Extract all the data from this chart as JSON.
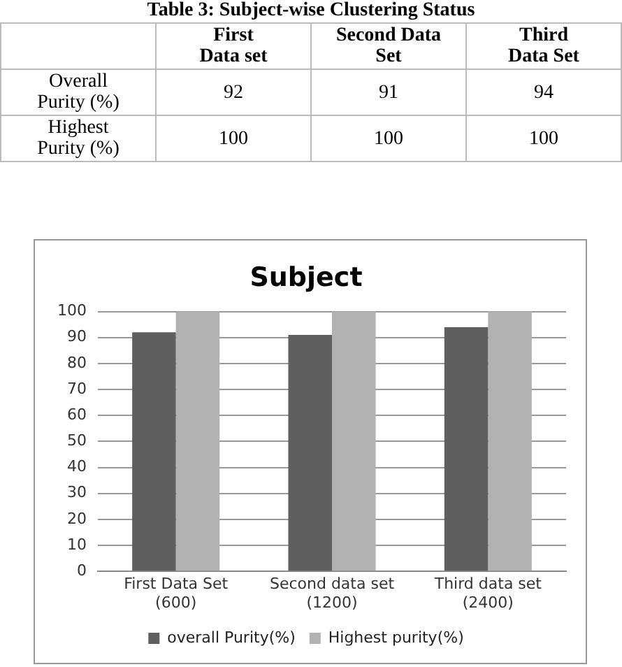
{
  "chart_data": {
    "type": "bar",
    "title": "Subject",
    "categories": [
      "First Data Set\n(600)",
      "Second data set\n(1200)",
      "Third data set\n(2400)"
    ],
    "series": [
      {
        "name": "overall Purity(%)",
        "color": "#5f5f5f",
        "values": [
          92,
          91,
          94
        ]
      },
      {
        "name": "Highest purity(%)",
        "color": "#b2b2b2",
        "values": [
          100,
          100,
          100
        ]
      }
    ],
    "ylim": [
      0,
      100
    ],
    "yticks": [
      0,
      10,
      20,
      30,
      40,
      50,
      60,
      70,
      80,
      90,
      100
    ],
    "grid": "y",
    "legend": "bottom",
    "data_labels": true,
    "annotations": [
      "Table 3: Subject-wise Clustering Status",
      "First\nData set",
      "Second Data\nSet",
      "Third\nData Set",
      "Overall\nPurity (%)",
      "Highest\nPurity (%)"
    ]
  }
}
